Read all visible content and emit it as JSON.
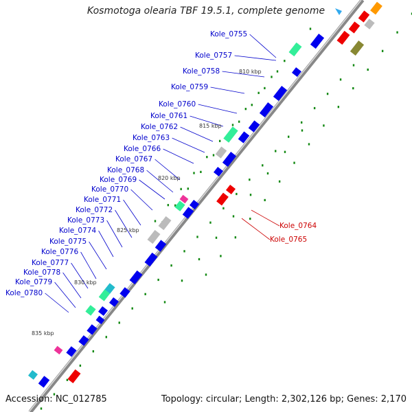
{
  "title": "Kosmotoga olearia TBF 19.5.1, complete genome",
  "accession_text": "Accession: NC_012785",
  "summary_text": "Topology: circular; Length: 2,302,126 bp; Genes: 2,170",
  "colors": {
    "forward_gene": "#0000ee",
    "reverse_gene": "#ee0000",
    "label_blue": "#0000cc",
    "label_red": "#cc0000",
    "rna_green": "#33ee99",
    "pseudo_gray": "#bbbbbb",
    "tick_green": "#118811",
    "backbone": "#888888"
  },
  "kbp_ticks": [
    "810 kbp",
    "815 kbp",
    "820 kbp",
    "825 kbp",
    "830 kbp",
    "835 kbp"
  ],
  "forward_labels": [
    "Kole_0755",
    "Kole_0757",
    "Kole_0758",
    "Kole_0759",
    "Kole_0760",
    "Kole_0761",
    "Kole_0762",
    "Kole_0763",
    "Kole_0766",
    "Kole_0767",
    "Kole_0768",
    "Kole_0769",
    "Kole_0770",
    "Kole_0771",
    "Kole_0772",
    "Kole_0773",
    "Kole_0774",
    "Kole_0775",
    "Kole_0776",
    "Kole_0777",
    "Kole_0778",
    "Kole_0779",
    "Kole_0780"
  ],
  "reverse_labels": [
    "Kole_0764",
    "Kole_0765"
  ]
}
